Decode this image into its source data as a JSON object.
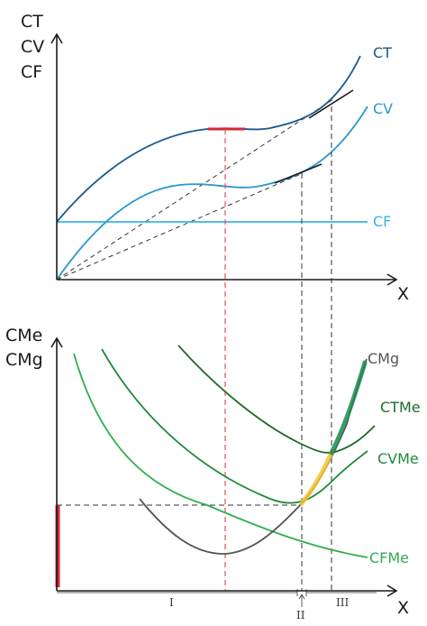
{
  "top_panel": {
    "y_axis_labels": [
      "CT",
      "CV",
      "CF"
    ],
    "x_axis_label": "X",
    "curves": {
      "ct": {
        "label": "CT",
        "color": "#1a5a8f"
      },
      "cv": {
        "label": "CV",
        "color": "#2b97cc"
      },
      "cf": {
        "label": "CF",
        "color": "#35b4ea"
      }
    }
  },
  "bottom_panel": {
    "y_axis_labels": [
      "CMe",
      "CMg"
    ],
    "x_axis_label": "X",
    "curves": {
      "cmg": {
        "label": "CMg",
        "color": "#555555"
      },
      "ctme": {
        "label": "CTMe",
        "color": "#1f6b2e"
      },
      "cvme": {
        "label": "CVMe",
        "color": "#1e8a3a"
      },
      "cfme": {
        "label": "CFMe",
        "color": "#2fae4f"
      }
    },
    "zones": [
      "I",
      "II",
      "III"
    ]
  },
  "colors": {
    "axis": "#1a1a1a",
    "guide_red": "#e0505a",
    "guide_black": "#333333",
    "highlight_red": "#d42a3a",
    "highlight_yellow": "#f2c531",
    "highlight_green": "#1e8a4f"
  }
}
